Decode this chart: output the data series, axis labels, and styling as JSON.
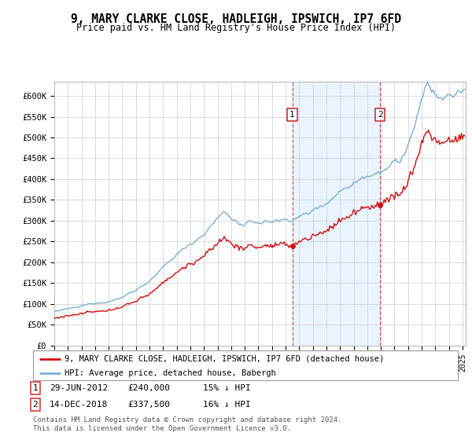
{
  "title": "9, MARY CLARKE CLOSE, HADLEIGH, IPSWICH, IP7 6FD",
  "subtitle": "Price paid vs. HM Land Registry's House Price Index (HPI)",
  "sale1_date_str": "2012-06-29",
  "sale1_price": 240000,
  "sale1_label": "1",
  "sale1_table": "29-JUN-2012",
  "sale1_amount": "£240,000",
  "sale1_hpi": "15% ↓ HPI",
  "sale2_date_str": "2018-12-14",
  "sale2_price": 337500,
  "sale2_label": "2",
  "sale2_table": "14-DEC-2018",
  "sale2_amount": "£337,500",
  "sale2_hpi": "16% ↓ HPI",
  "legend_property": "9, MARY CLARKE CLOSE, HADLEIGH, IPSWICH, IP7 6FD (detached house)",
  "legend_hpi": "HPI: Average price, detached house, Babergh",
  "footer_line1": "Contains HM Land Registry data © Crown copyright and database right 2024.",
  "footer_line2": "This data is licensed under the Open Government Licence v3.0.",
  "hpi_color": "#7bafd4",
  "property_color": "#cc1111",
  "marker_color": "#cc1111",
  "vline_color": "#cc3333",
  "shade_color": "#ddeeff",
  "background_color": "#ffffff",
  "grid_color": "#cccccc",
  "box_edge_color": "#cc3333"
}
